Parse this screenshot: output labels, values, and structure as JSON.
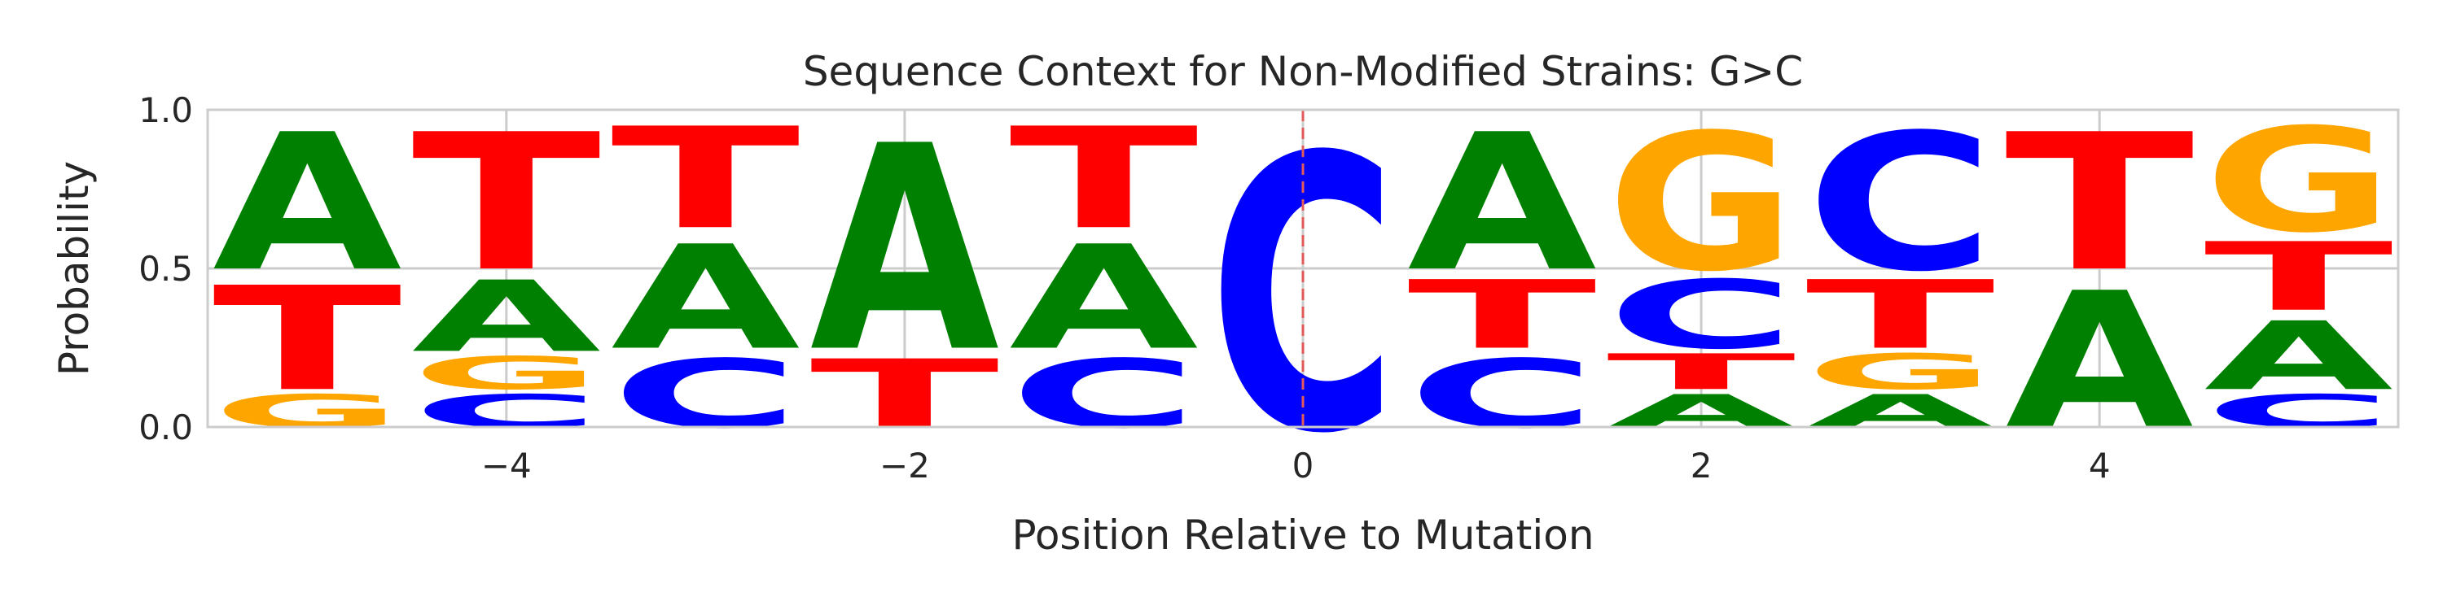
{
  "chart_data": {
    "type": "sequence-logo",
    "title": "Sequence Context for Non-Modified Strains: G>C",
    "xlabel": "Position Relative to Mutation",
    "ylabel": "Probability",
    "xlim": [
      -5.5,
      5.5
    ],
    "ylim": [
      0,
      1
    ],
    "x_ticks": [
      -4,
      -2,
      0,
      2,
      4
    ],
    "x_tick_labels": [
      "−4",
      "−2",
      "0",
      "2",
      "4"
    ],
    "y_ticks": [
      0,
      0.5,
      1
    ],
    "y_tick_labels": [
      "0.0",
      "0.5",
      "1.0"
    ],
    "grid": true,
    "mutation_marker": {
      "x": 0,
      "style": "dashed",
      "color": "#e05a5a"
    },
    "colors": {
      "A": "#008000",
      "C": "#0000ff",
      "G": "#ffa500",
      "T": "#ff0000"
    },
    "positions": [
      {
        "pos": -5,
        "stack": [
          {
            "base": "G",
            "p": 0.12
          },
          {
            "base": "T",
            "p": 0.38
          },
          {
            "base": "A",
            "p": 0.5
          }
        ]
      },
      {
        "pos": -4,
        "stack": [
          {
            "base": "C",
            "p": 0.12
          },
          {
            "base": "G",
            "p": 0.12
          },
          {
            "base": "A",
            "p": 0.26
          },
          {
            "base": "T",
            "p": 0.5
          }
        ]
      },
      {
        "pos": -3,
        "stack": [
          {
            "base": "C",
            "p": 0.25
          },
          {
            "base": "A",
            "p": 0.38
          },
          {
            "base": "T",
            "p": 0.37
          }
        ]
      },
      {
        "pos": -2,
        "stack": [
          {
            "base": "T",
            "p": 0.25
          },
          {
            "base": "A",
            "p": 0.75
          }
        ]
      },
      {
        "pos": -1,
        "stack": [
          {
            "base": "C",
            "p": 0.25
          },
          {
            "base": "A",
            "p": 0.38
          },
          {
            "base": "T",
            "p": 0.37
          }
        ]
      },
      {
        "pos": 0,
        "stack": [
          {
            "base": "C",
            "p": 1.0
          }
        ]
      },
      {
        "pos": 1,
        "stack": [
          {
            "base": "C",
            "p": 0.25
          },
          {
            "base": "T",
            "p": 0.25
          },
          {
            "base": "A",
            "p": 0.5
          }
        ]
      },
      {
        "pos": 2,
        "stack": [
          {
            "base": "A",
            "p": 0.12
          },
          {
            "base": "T",
            "p": 0.13
          },
          {
            "base": "C",
            "p": 0.25
          },
          {
            "base": "G",
            "p": 0.5
          }
        ]
      },
      {
        "pos": 3,
        "stack": [
          {
            "base": "A",
            "p": 0.12
          },
          {
            "base": "G",
            "p": 0.13
          },
          {
            "base": "T",
            "p": 0.25
          },
          {
            "base": "C",
            "p": 0.5
          }
        ]
      },
      {
        "pos": 4,
        "stack": [
          {
            "base": "A",
            "p": 0.5
          },
          {
            "base": "T",
            "p": 0.5
          }
        ]
      },
      {
        "pos": 5,
        "stack": [
          {
            "base": "C",
            "p": 0.12
          },
          {
            "base": "A",
            "p": 0.25
          },
          {
            "base": "T",
            "p": 0.25
          },
          {
            "base": "G",
            "p": 0.38
          }
        ]
      }
    ]
  }
}
